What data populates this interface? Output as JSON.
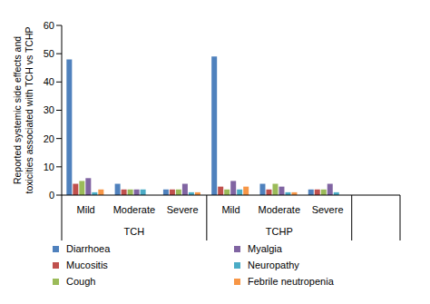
{
  "chart_data": {
    "type": "bar",
    "y_label": "Reported systemic side effects and toxicities associated with TCH vs TCHP",
    "categories": [
      "Mild",
      "Moderate",
      "Severe",
      "Mild",
      "Moderate",
      "Severe",
      null
    ],
    "groups": [
      "TCH",
      "TCH",
      "TCH",
      "TCHP",
      "TCHP",
      "TCHP",
      null
    ],
    "series": [
      {
        "name": "Diarrhoea",
        "color": "#4f81bd",
        "values": [
          48,
          4,
          2,
          49,
          4,
          2,
          null
        ]
      },
      {
        "name": "Mucositis",
        "color": "#c0504d",
        "values": [
          4,
          2,
          2,
          3,
          2,
          2,
          null
        ]
      },
      {
        "name": "Cough",
        "color": "#9bbb59",
        "values": [
          5,
          2,
          2,
          2,
          4,
          2,
          null
        ]
      },
      {
        "name": "Myalgia",
        "color": "#8064a2",
        "values": [
          6,
          2,
          4,
          5,
          3,
          4,
          null
        ]
      },
      {
        "name": "Neuropathy",
        "color": "#4bacc6",
        "values": [
          1,
          2,
          1,
          2,
          1,
          1,
          null
        ]
      },
      {
        "name": "Febrile neutropenia",
        "color": "#f79646",
        "values": [
          2,
          0,
          1,
          3,
          1,
          0,
          null
        ]
      }
    ],
    "ylim": [
      0,
      60
    ],
    "yticks": [
      0,
      10,
      20,
      30,
      40,
      50,
      60
    ],
    "legend": "bottom"
  }
}
